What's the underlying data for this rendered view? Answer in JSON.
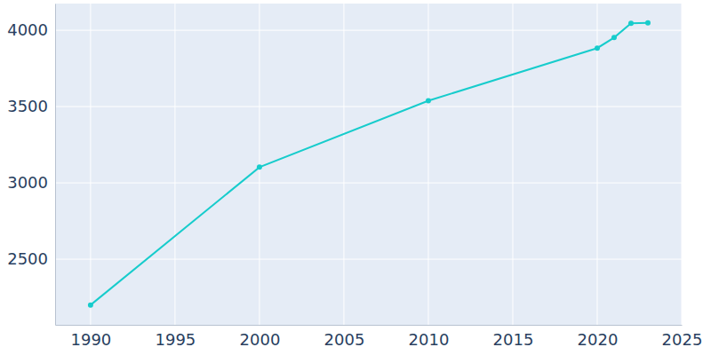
{
  "chart_data": {
    "type": "line",
    "x": [
      1990,
      2000,
      2010,
      2020,
      2021,
      2022,
      2023
    ],
    "values": [
      2200,
      3103,
      3538,
      3883,
      3952,
      4046,
      4048
    ],
    "color": "#17cccc",
    "marker": "circle",
    "xlim": [
      1987.9,
      2025
    ],
    "xticks": [
      1990,
      1995,
      2000,
      2005,
      2010,
      2015,
      2020,
      2025
    ],
    "ylim": [
      2070,
      4175
    ],
    "yticks": [
      2500,
      3000,
      3500,
      4000
    ],
    "grid": true
  }
}
